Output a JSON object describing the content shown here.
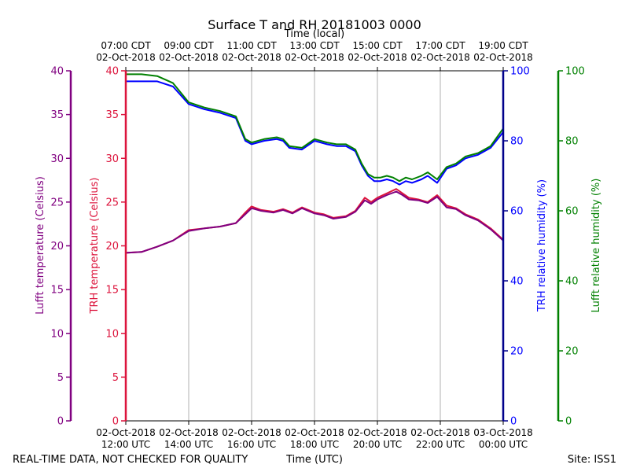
{
  "title": "Surface T and RH 20181003 0000",
  "footer": {
    "quality_note": "REAL-TIME DATA, NOT CHECKED FOR QUALITY",
    "site": "Site: ISS1"
  },
  "colors": {
    "lufft_temp": "#800080",
    "trh_temp": "#dc143c",
    "trh_rh": "#0000ff",
    "lufft_rh": "#008000",
    "trh_rh_axis": "#00008b",
    "grid": "#b0b0b0"
  },
  "chart_data": {
    "type": "line",
    "x_unit": "hours UTC (02-Oct-2018)",
    "xlim": [
      12,
      24
    ],
    "x_bottom_label": "Time (UTC)",
    "x_top_label": "Time (local)",
    "x_bottom_ticks": [
      {
        "x": 12,
        "line1": "02-Oct-2018",
        "line2": "12:00 UTC"
      },
      {
        "x": 14,
        "line1": "02-Oct-2018",
        "line2": "14:00 UTC"
      },
      {
        "x": 16,
        "line1": "02-Oct-2018",
        "line2": "16:00 UTC"
      },
      {
        "x": 18,
        "line1": "02-Oct-2018",
        "line2": "18:00 UTC"
      },
      {
        "x": 20,
        "line1": "02-Oct-2018",
        "line2": "20:00 UTC"
      },
      {
        "x": 22,
        "line1": "02-Oct-2018",
        "line2": "22:00 UTC"
      },
      {
        "x": 24,
        "line1": "03-Oct-2018",
        "line2": "00:00 UTC"
      }
    ],
    "x_top_ticks": [
      {
        "x": 12,
        "line1": "07:00 CDT",
        "line2": "02-Oct-2018"
      },
      {
        "x": 14,
        "line1": "09:00 CDT",
        "line2": "02-Oct-2018"
      },
      {
        "x": 16,
        "line1": "11:00 CDT",
        "line2": "02-Oct-2018"
      },
      {
        "x": 18,
        "line1": "13:00 CDT",
        "line2": "02-Oct-2018"
      },
      {
        "x": 20,
        "line1": "15:00 CDT",
        "line2": "02-Oct-2018"
      },
      {
        "x": 22,
        "line1": "17:00 CDT",
        "line2": "02-Oct-2018"
      },
      {
        "x": 24,
        "line1": "19:00 CDT",
        "line2": "02-Oct-2018"
      }
    ],
    "grid": "vertical-only",
    "axes": {
      "lufft_temp": {
        "label": "Lufft temperature (Celsius)",
        "ylim": [
          0,
          40
        ],
        "ticks": [
          "0",
          "5",
          "10",
          "15",
          "20",
          "25",
          "30",
          "35",
          "40"
        ]
      },
      "trh_temp": {
        "label": "TRH temperature (Celsius)",
        "ylim": [
          0,
          40
        ],
        "ticks": [
          "0",
          "5",
          "10",
          "15",
          "20",
          "25",
          "30",
          "35",
          "40"
        ]
      },
      "trh_rh": {
        "label": "TRH relative humidity (%)",
        "ylim": [
          0,
          100
        ],
        "ticks": [
          "0",
          "20",
          "40",
          "60",
          "80",
          "100"
        ]
      },
      "lufft_rh": {
        "label": "Lufft relative humidity (%)",
        "ylim": [
          0,
          100
        ],
        "ticks": [
          "0",
          "20",
          "40",
          "60",
          "80",
          "100"
        ]
      }
    },
    "series": [
      {
        "key": "trh_temp",
        "axis": "trh_temp",
        "values": [
          [
            12.0,
            19.2
          ],
          [
            12.5,
            19.3
          ],
          [
            13.0,
            19.9
          ],
          [
            13.5,
            20.6
          ],
          [
            14.0,
            21.8
          ],
          [
            14.5,
            22.0
          ],
          [
            15.0,
            22.2
          ],
          [
            15.5,
            22.6
          ],
          [
            15.8,
            23.8
          ],
          [
            16.0,
            24.5
          ],
          [
            16.3,
            24.1
          ],
          [
            16.7,
            23.9
          ],
          [
            17.0,
            24.2
          ],
          [
            17.3,
            23.8
          ],
          [
            17.6,
            24.4
          ],
          [
            18.0,
            23.8
          ],
          [
            18.3,
            23.6
          ],
          [
            18.6,
            23.2
          ],
          [
            19.0,
            23.4
          ],
          [
            19.3,
            24.0
          ],
          [
            19.6,
            25.5
          ],
          [
            19.8,
            25.0
          ],
          [
            20.0,
            25.5
          ],
          [
            20.3,
            26.0
          ],
          [
            20.6,
            26.5
          ],
          [
            20.8,
            26.0
          ],
          [
            21.0,
            25.5
          ],
          [
            21.3,
            25.3
          ],
          [
            21.6,
            25.0
          ],
          [
            21.9,
            25.8
          ],
          [
            22.2,
            24.6
          ],
          [
            22.5,
            24.3
          ],
          [
            22.8,
            23.6
          ],
          [
            23.2,
            23.0
          ],
          [
            23.6,
            22.0
          ],
          [
            24.0,
            20.7
          ]
        ]
      },
      {
        "key": "lufft_temp",
        "axis": "lufft_temp",
        "values": [
          [
            12.0,
            19.2
          ],
          [
            12.5,
            19.3
          ],
          [
            13.0,
            19.9
          ],
          [
            13.5,
            20.6
          ],
          [
            14.0,
            21.7
          ],
          [
            14.5,
            22.0
          ],
          [
            15.0,
            22.2
          ],
          [
            15.5,
            22.6
          ],
          [
            15.8,
            23.6
          ],
          [
            16.0,
            24.3
          ],
          [
            16.3,
            24.0
          ],
          [
            16.7,
            23.8
          ],
          [
            17.0,
            24.1
          ],
          [
            17.3,
            23.7
          ],
          [
            17.6,
            24.3
          ],
          [
            18.0,
            23.7
          ],
          [
            18.3,
            23.5
          ],
          [
            18.6,
            23.1
          ],
          [
            19.0,
            23.3
          ],
          [
            19.3,
            23.9
          ],
          [
            19.6,
            25.2
          ],
          [
            19.8,
            24.8
          ],
          [
            20.0,
            25.3
          ],
          [
            20.3,
            25.8
          ],
          [
            20.6,
            26.2
          ],
          [
            20.8,
            25.8
          ],
          [
            21.0,
            25.3
          ],
          [
            21.3,
            25.2
          ],
          [
            21.6,
            24.9
          ],
          [
            21.9,
            25.6
          ],
          [
            22.2,
            24.4
          ],
          [
            22.5,
            24.2
          ],
          [
            22.8,
            23.5
          ],
          [
            23.2,
            22.9
          ],
          [
            23.6,
            21.9
          ],
          [
            24.0,
            20.6
          ]
        ]
      },
      {
        "key": "trh_rh",
        "axis": "trh_rh",
        "values": [
          [
            12.0,
            97.0
          ],
          [
            12.5,
            97.0
          ],
          [
            13.0,
            97.0
          ],
          [
            13.5,
            95.5
          ],
          [
            14.0,
            90.5
          ],
          [
            14.5,
            89.0
          ],
          [
            15.0,
            88.0
          ],
          [
            15.5,
            86.5
          ],
          [
            15.8,
            80.0
          ],
          [
            16.0,
            79.0
          ],
          [
            16.4,
            80.0
          ],
          [
            16.8,
            80.5
          ],
          [
            17.0,
            80.0
          ],
          [
            17.2,
            78.0
          ],
          [
            17.6,
            77.5
          ],
          [
            18.0,
            80.0
          ],
          [
            18.4,
            79.0
          ],
          [
            18.7,
            78.5
          ],
          [
            19.0,
            78.5
          ],
          [
            19.3,
            77.0
          ],
          [
            19.5,
            73.0
          ],
          [
            19.7,
            70.0
          ],
          [
            19.9,
            68.5
          ],
          [
            20.1,
            68.5
          ],
          [
            20.3,
            69.0
          ],
          [
            20.5,
            68.5
          ],
          [
            20.7,
            67.5
          ],
          [
            20.9,
            68.5
          ],
          [
            21.1,
            68.0
          ],
          [
            21.4,
            69.0
          ],
          [
            21.6,
            70.0
          ],
          [
            21.9,
            68.0
          ],
          [
            22.2,
            72.0
          ],
          [
            22.5,
            73.0
          ],
          [
            22.8,
            75.0
          ],
          [
            23.2,
            76.0
          ],
          [
            23.6,
            78.0
          ],
          [
            24.0,
            82.5
          ]
        ]
      },
      {
        "key": "lufft_rh",
        "axis": "lufft_rh",
        "values": [
          [
            12.0,
            99.0
          ],
          [
            12.5,
            99.0
          ],
          [
            13.0,
            98.5
          ],
          [
            13.5,
            96.5
          ],
          [
            14.0,
            91.0
          ],
          [
            14.5,
            89.5
          ],
          [
            15.0,
            88.5
          ],
          [
            15.5,
            87.0
          ],
          [
            15.8,
            80.5
          ],
          [
            16.0,
            79.5
          ],
          [
            16.4,
            80.5
          ],
          [
            16.8,
            81.0
          ],
          [
            17.0,
            80.5
          ],
          [
            17.2,
            78.5
          ],
          [
            17.6,
            78.0
          ],
          [
            18.0,
            80.5
          ],
          [
            18.4,
            79.5
          ],
          [
            18.7,
            79.0
          ],
          [
            19.0,
            79.0
          ],
          [
            19.3,
            77.5
          ],
          [
            19.5,
            73.5
          ],
          [
            19.7,
            70.5
          ],
          [
            19.9,
            69.5
          ],
          [
            20.1,
            69.5
          ],
          [
            20.3,
            70.0
          ],
          [
            20.5,
            69.5
          ],
          [
            20.7,
            68.5
          ],
          [
            20.9,
            69.5
          ],
          [
            21.1,
            69.0
          ],
          [
            21.4,
            70.0
          ],
          [
            21.6,
            71.0
          ],
          [
            21.9,
            69.0
          ],
          [
            22.2,
            72.5
          ],
          [
            22.5,
            73.5
          ],
          [
            22.8,
            75.5
          ],
          [
            23.2,
            76.5
          ],
          [
            23.6,
            78.5
          ],
          [
            24.0,
            83.5
          ]
        ]
      }
    ]
  }
}
